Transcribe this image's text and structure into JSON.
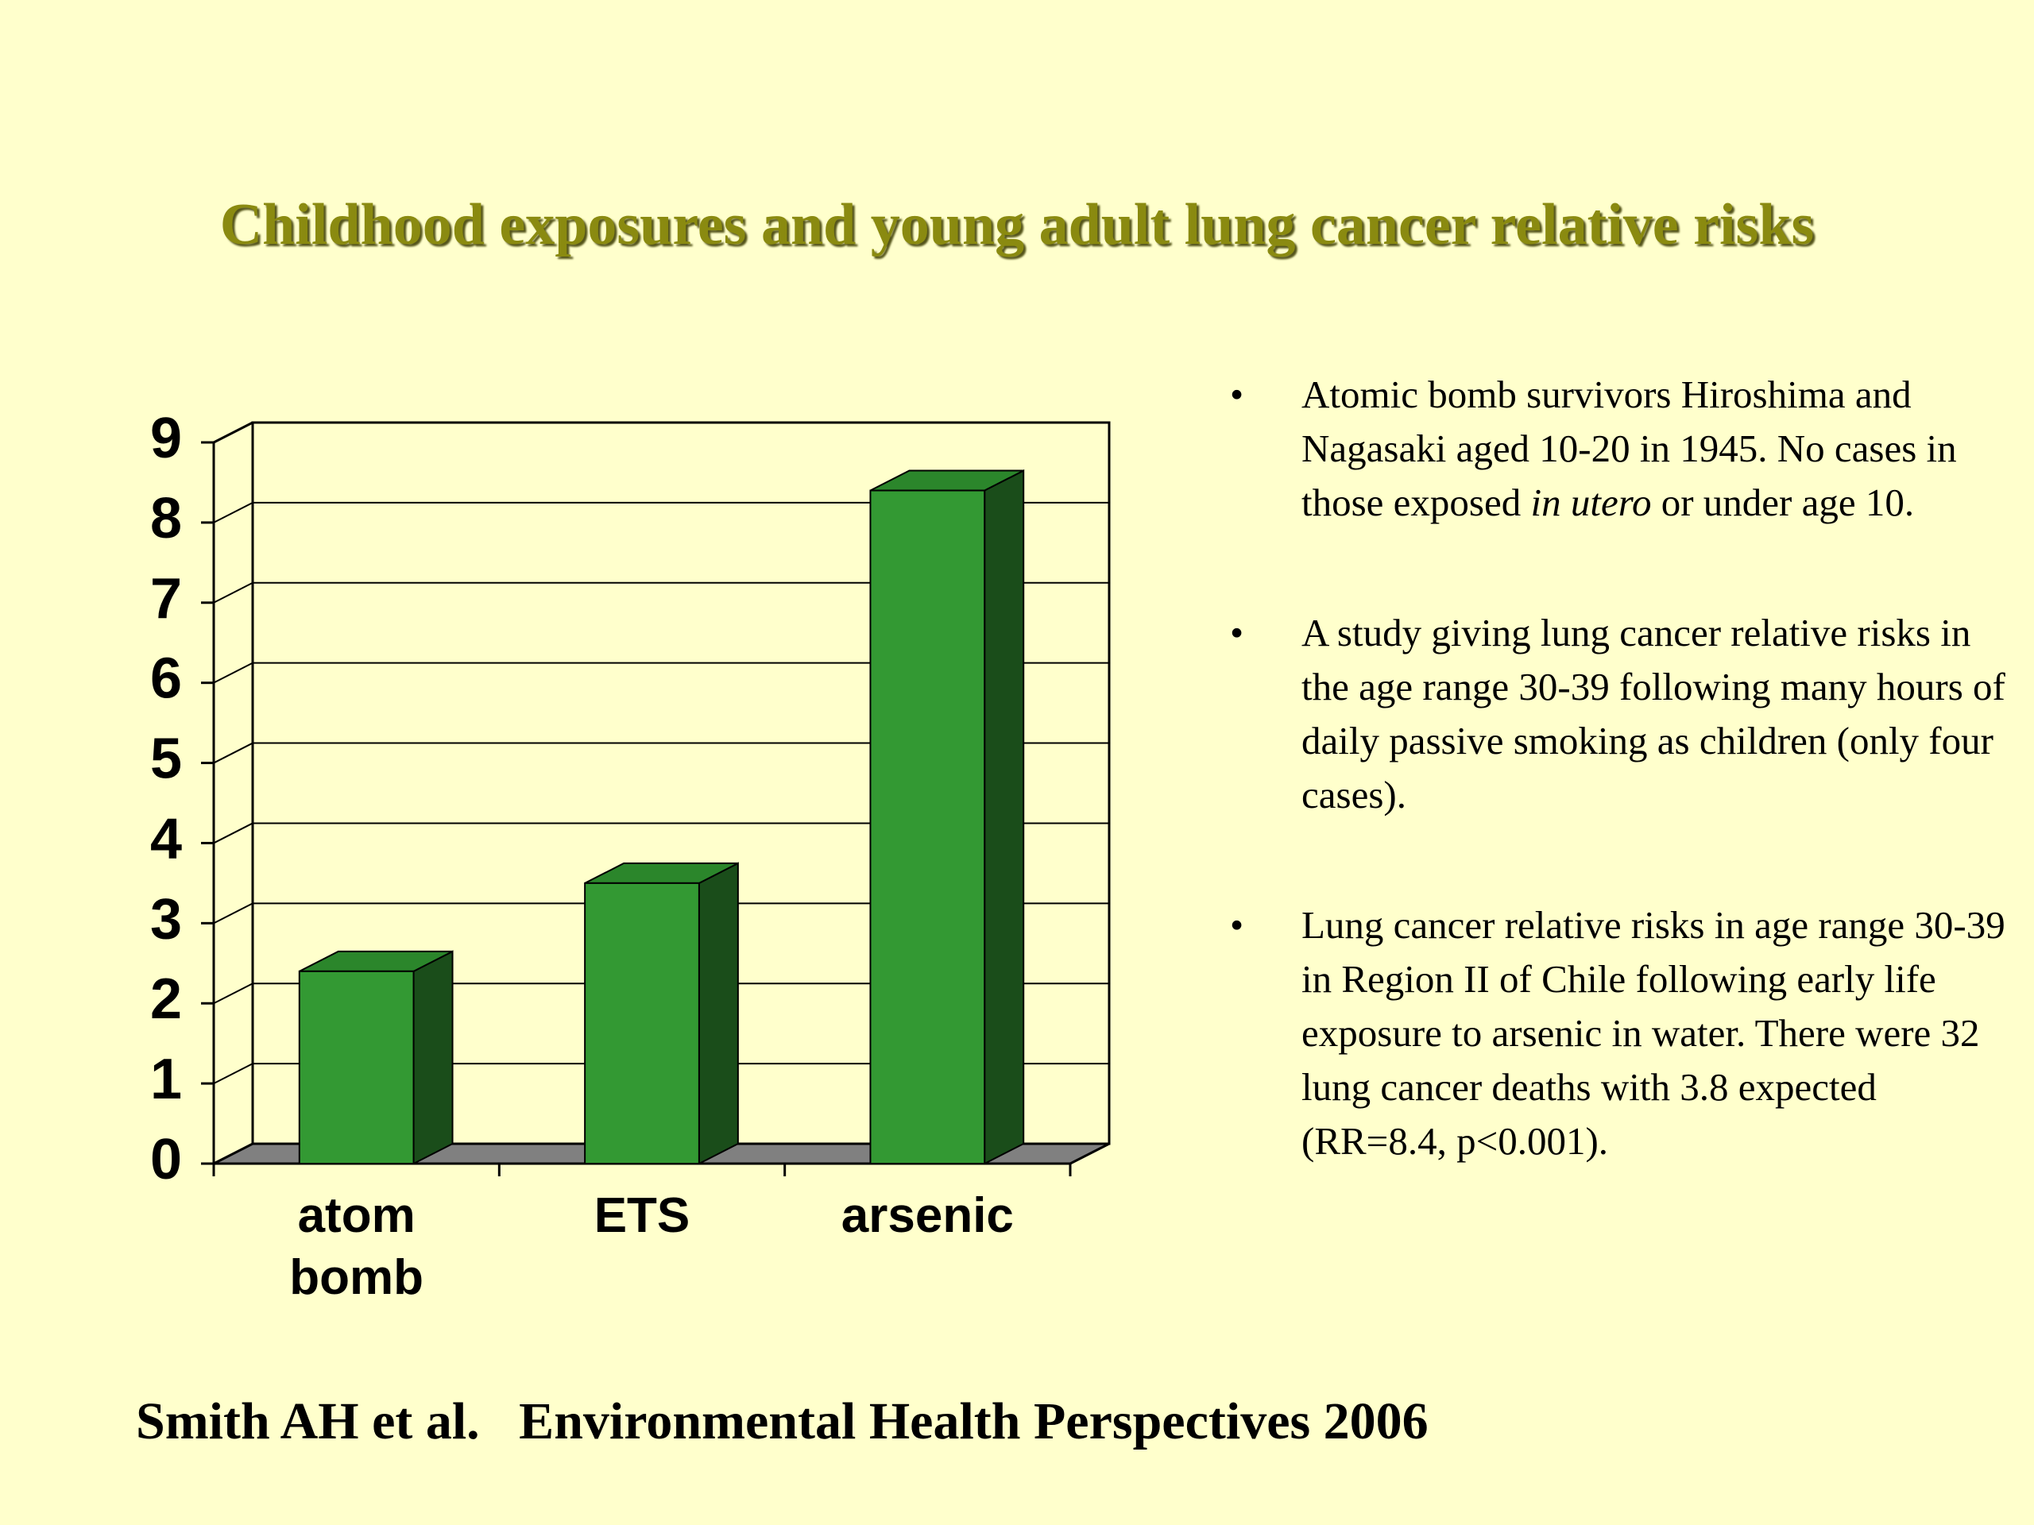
{
  "chart_data": {
    "type": "bar",
    "title": "Childhood exposures and young adult lung cancer relative risks",
    "categories": [
      "atom bomb",
      "ETS",
      "arsenic"
    ],
    "values": [
      2.4,
      3.5,
      8.4
    ],
    "color": "#339933",
    "ylim": [
      0,
      9
    ],
    "yticks": [
      0,
      1,
      2,
      3,
      4,
      5,
      6,
      7,
      8,
      9
    ],
    "grid": true
  },
  "bullets": [
    [
      "Atomic bomb survivors Hiroshima and Nagasaki aged 10-20 in 1945. No cases in those exposed ",
      "in utero",
      " or under age 10."
    ],
    [
      "A study giving lung cancer relative risks in the age range 30-39 following many hours of daily passive smoking as children (only four cases)."
    ],
    [
      "Lung cancer relative risks in age range 30-39 in Region II of Chile following early life exposure to arsenic in water. There were 32 lung cancer deaths with 3.8 expected (RR=8.4, p<0.001)."
    ]
  ],
  "footer": "Smith AH et al.   Environmental Health Perspectives 2006"
}
